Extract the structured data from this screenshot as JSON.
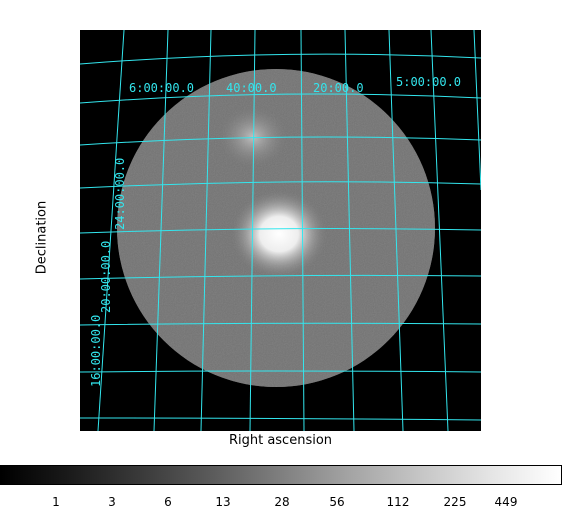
{
  "axes": {
    "xlabel": "Right ascension",
    "ylabel": "Declination"
  },
  "grid": {
    "color": "#33e6ee",
    "ra_labels": [
      "6:00:00.0",
      "40:00.0",
      "20:00.0",
      "5:00:00.0"
    ],
    "dec_labels": [
      "24:00:00.0",
      "20:00:00.0",
      "16:00:00.0"
    ]
  },
  "colorbar": {
    "gradient": "black-to-white",
    "ticks": [
      "1",
      "3",
      "6",
      "13",
      "28",
      "56",
      "112",
      "225",
      "449"
    ]
  }
}
